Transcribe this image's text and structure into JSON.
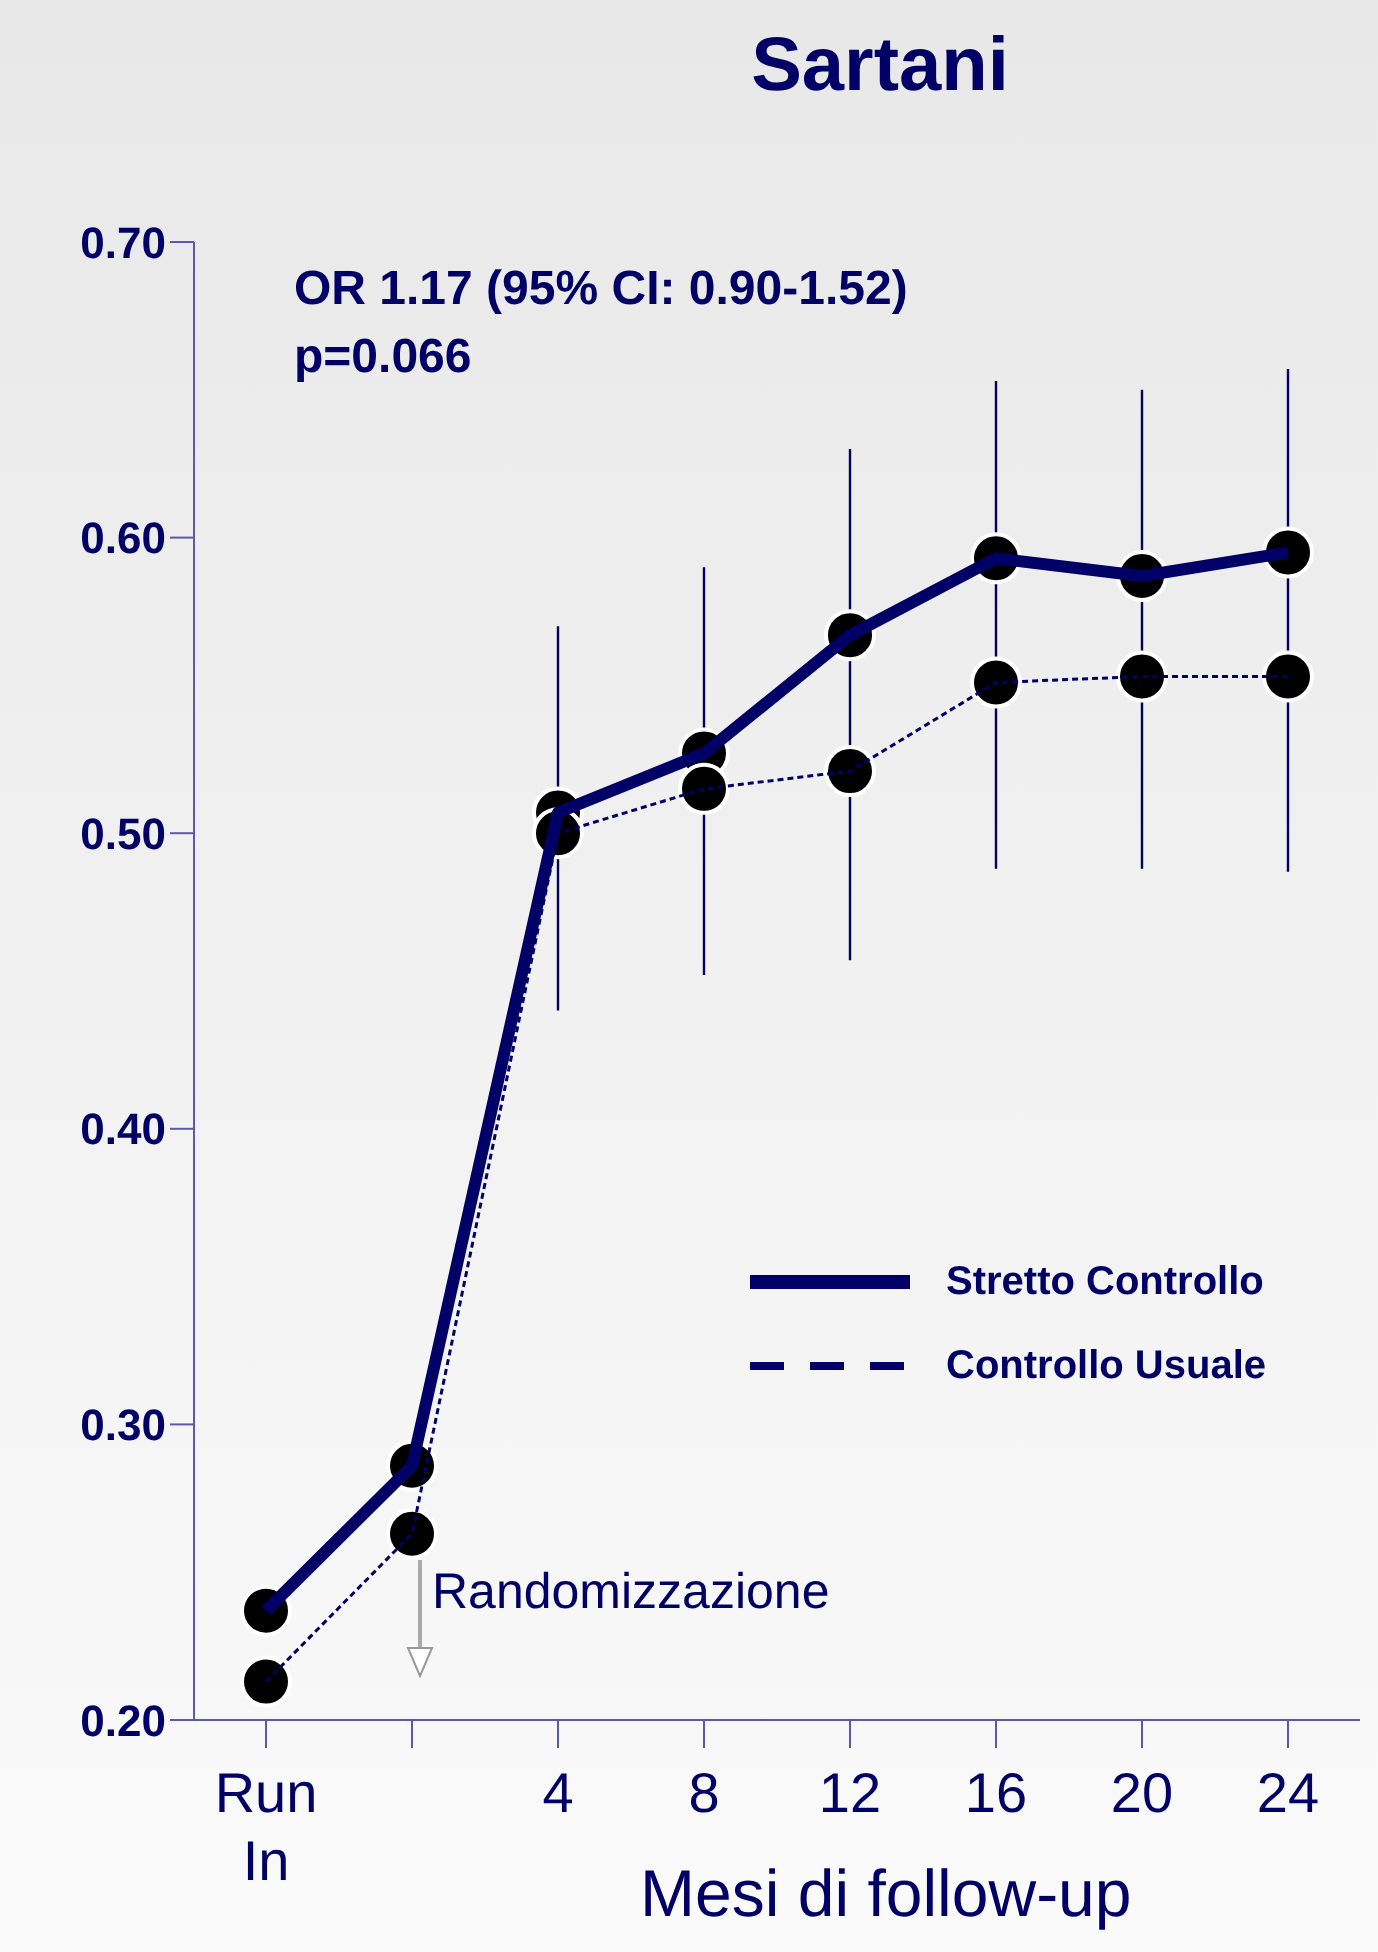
{
  "chart_data": {
    "type": "line",
    "title": "Sartani",
    "xlabel": "Mesi di follow-up",
    "categories": [
      "Run In",
      null,
      "4",
      "8",
      "12",
      "16",
      "20",
      "24"
    ],
    "series": [
      {
        "name": "Stretto Controllo",
        "color": "#000066",
        "line_style": "solid",
        "values": [
          0.237,
          0.286,
          0.507,
          0.527,
          0.567,
          0.593,
          0.587,
          0.595
        ],
        "errors": [
          null,
          null,
          [
            0.44,
            0.57
          ],
          [
            0.452,
            0.59
          ],
          [
            0.457,
            0.63
          ],
          [
            0.488,
            0.653
          ],
          [
            0.488,
            0.65
          ],
          [
            0.487,
            0.657
          ]
        ]
      },
      {
        "name": "Controllo Usuale",
        "color": "#000066",
        "line_style": "dashed",
        "values": [
          0.213,
          0.263,
          0.5,
          0.515,
          0.521,
          0.551,
          0.553,
          0.553
        ]
      }
    ],
    "ylim": [
      0.2,
      0.7
    ],
    "yticks": [
      {
        "value": 0.2,
        "label": "0.20"
      },
      {
        "value": 0.3,
        "label": "0.30"
      },
      {
        "value": 0.4,
        "label": "0.40"
      },
      {
        "value": 0.5,
        "label": "0.50"
      },
      {
        "value": 0.6,
        "label": "0.60"
      },
      {
        "value": 0.7,
        "label": "0.70"
      }
    ],
    "marker": "circle",
    "legend": "right",
    "grid": false,
    "annotations": [
      "OR 1.17 (95% CI: 0.90-1.52)",
      "p=0.066",
      "Randomizzazione"
    ]
  }
}
